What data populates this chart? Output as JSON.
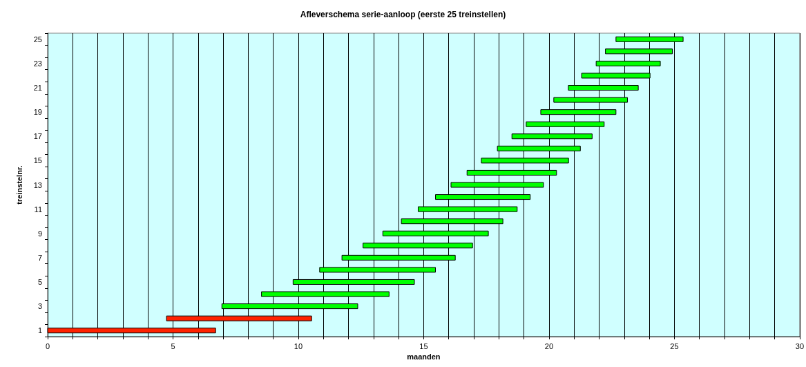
{
  "chart_data": {
    "type": "bar",
    "orientation": "horizontal",
    "title": "Afleverschema serie-aanloop (eerste 25 treinstellen)",
    "xlabel": "maanden",
    "ylabel": "treinstelnr.",
    "categories": [
      "25",
      null,
      "23",
      null,
      "21",
      null,
      "19",
      null,
      "17",
      null,
      "15",
      null,
      "13",
      null,
      "11",
      null,
      "9",
      null,
      "7",
      null,
      "5",
      null,
      "3",
      null,
      "1"
    ],
    "base": [
      22.67,
      22.25,
      21.88,
      21.3,
      20.77,
      20.19,
      19.67,
      19.09,
      18.52,
      17.94,
      17.3,
      16.73,
      16.09,
      15.47,
      14.78,
      14.11,
      13.37,
      12.58,
      11.74,
      10.85,
      9.79,
      8.53,
      6.95,
      4.74,
      0
    ],
    "values": [
      2.68,
      2.67,
      2.56,
      2.73,
      2.79,
      2.94,
      3.0,
      3.11,
      3.2,
      3.31,
      3.48,
      3.57,
      3.69,
      3.78,
      3.95,
      4.05,
      4.21,
      4.37,
      4.52,
      4.62,
      4.84,
      5.09,
      5.42,
      5.79,
      6.7
    ],
    "colors": [
      "#00ff00",
      "#00ff00",
      "#00ff00",
      "#00ff00",
      "#00ff00",
      "#00ff00",
      "#00ff00",
      "#00ff00",
      "#00ff00",
      "#00ff00",
      "#00ff00",
      "#00ff00",
      "#00ff00",
      "#00ff00",
      "#00ff00",
      "#00ff00",
      "#00ff00",
      "#00ff00",
      "#00ff00",
      "#00ff00",
      "#00ff00",
      "#00ff00",
      "#00ff00",
      "#ff2200",
      "#ff2200"
    ],
    "xlim": [
      0,
      30
    ],
    "xticks": [
      0,
      {
        "value": 1,
        "label": null
      },
      {
        "value": 2,
        "label": null
      },
      {
        "value": 3,
        "label": null
      },
      {
        "value": 4,
        "label": null
      },
      5,
      {
        "value": 6,
        "label": null
      },
      {
        "value": 7,
        "label": null
      },
      {
        "value": 8,
        "label": null
      },
      {
        "value": 9,
        "label": null
      },
      10,
      {
        "value": 11,
        "label": null
      },
      {
        "value": 12,
        "label": null
      },
      {
        "value": 13,
        "label": null
      },
      {
        "value": 14,
        "label": null
      },
      15,
      {
        "value": 16,
        "label": null
      },
      {
        "value": 17,
        "label": null
      },
      {
        "value": 18,
        "label": null
      },
      {
        "value": 19,
        "label": null
      },
      20,
      {
        "value": 21,
        "label": null
      },
      {
        "value": 22,
        "label": null
      },
      {
        "value": 23,
        "label": null
      },
      {
        "value": 24,
        "label": null
      },
      25,
      {
        "value": 26,
        "label": null
      },
      {
        "value": 27,
        "label": null
      },
      {
        "value": 28,
        "label": null
      },
      {
        "value": 29,
        "label": null
      },
      30
    ],
    "grid": "x"
  }
}
